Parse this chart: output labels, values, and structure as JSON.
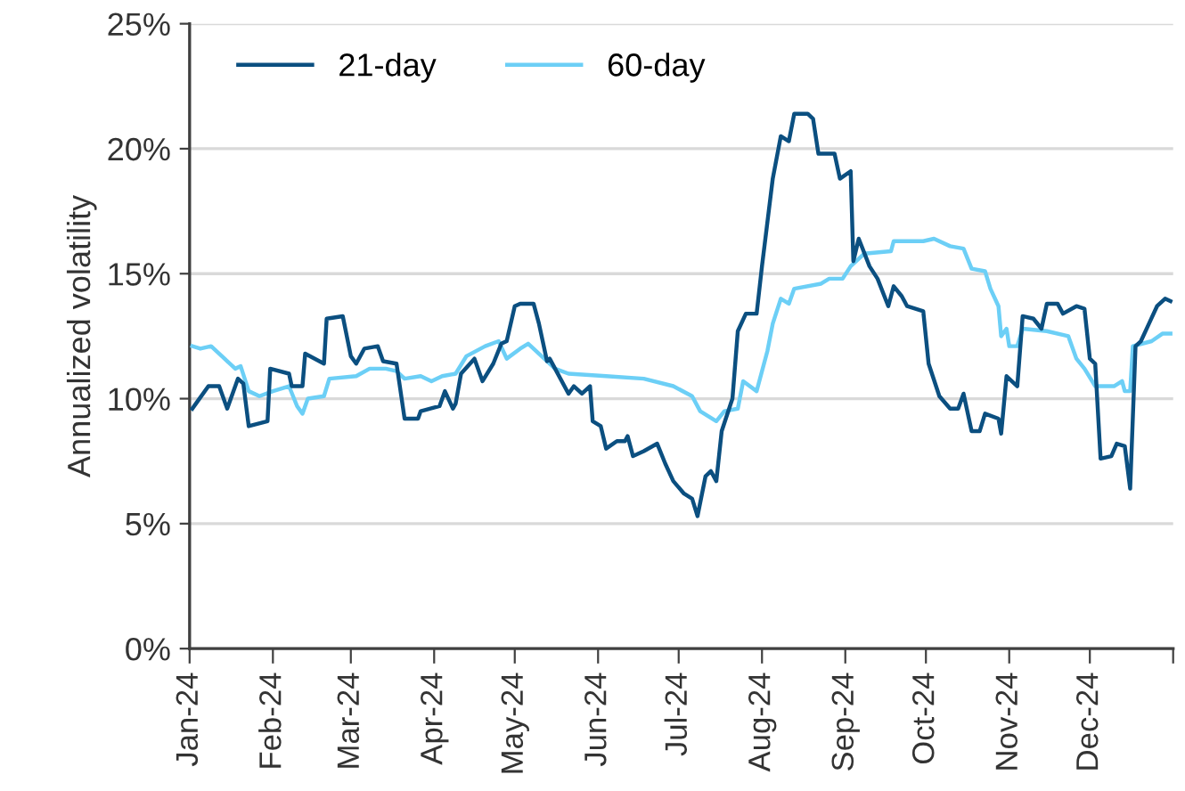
{
  "chart_data": {
    "type": "line",
    "ylabel": "Annualized volatility",
    "ylim": [
      0,
      25
    ],
    "yticks": [
      {
        "value": 0,
        "label": "0%"
      },
      {
        "value": 5,
        "label": "5%"
      },
      {
        "value": 10,
        "label": "10%"
      },
      {
        "value": 15,
        "label": "15%"
      },
      {
        "value": 20,
        "label": "20%"
      },
      {
        "value": 25,
        "label": "25%"
      }
    ],
    "xlim": [
      "2024-01-01",
      "2025-01-01"
    ],
    "xticks": [
      {
        "value": "2024-01-01",
        "label": "Jan-24"
      },
      {
        "value": "2024-02-01",
        "label": "Feb-24"
      },
      {
        "value": "2024-03-01",
        "label": "Mar-24"
      },
      {
        "value": "2024-04-01",
        "label": "Apr-24"
      },
      {
        "value": "2024-05-01",
        "label": "May-24"
      },
      {
        "value": "2024-06-01",
        "label": "Jun-24"
      },
      {
        "value": "2024-07-01",
        "label": "Jul-24"
      },
      {
        "value": "2024-08-01",
        "label": "Aug-24"
      },
      {
        "value": "2024-09-01",
        "label": "Sep-24"
      },
      {
        "value": "2024-10-01",
        "label": "Oct-24"
      },
      {
        "value": "2024-11-01",
        "label": "Nov-24"
      },
      {
        "value": "2024-12-01",
        "label": "Dec-24"
      },
      {
        "value": "2025-01-01",
        "label": null
      }
    ],
    "grid": "y",
    "legend": "top left",
    "marker": "none",
    "line_style": "solid",
    "series": [
      {
        "name": "21-day",
        "color": "#0b4f80",
        "x": [
          "2024-01-02",
          "2024-01-04",
          "2024-01-08",
          "2024-01-12",
          "2024-01-15",
          "2024-01-19",
          "2024-01-21",
          "2024-01-23",
          "2024-01-30",
          "2024-01-31",
          "2024-02-07",
          "2024-02-08",
          "2024-02-12",
          "2024-02-13",
          "2024-02-20",
          "2024-02-21",
          "2024-02-27",
          "2024-03-01",
          "2024-03-03",
          "2024-03-06",
          "2024-03-11",
          "2024-03-13",
          "2024-03-18",
          "2024-03-21",
          "2024-03-26",
          "2024-03-27",
          "2024-04-03",
          "2024-04-05",
          "2024-04-08",
          "2024-04-09",
          "2024-04-11",
          "2024-04-16",
          "2024-04-19",
          "2024-04-23",
          "2024-04-26",
          "2024-04-28",
          "2024-05-01",
          "2024-05-03",
          "2024-05-08",
          "2024-05-10",
          "2024-05-13",
          "2024-05-14",
          "2024-05-16",
          "2024-05-21",
          "2024-05-23",
          "2024-05-26",
          "2024-05-29",
          "2024-05-30",
          "2024-06-02",
          "2024-06-04",
          "2024-06-08",
          "2024-06-11",
          "2024-06-12",
          "2024-06-14",
          "2024-06-18",
          "2024-06-23",
          "2024-06-26",
          "2024-06-29",
          "2024-07-03",
          "2024-07-06",
          "2024-07-08",
          "2024-07-11",
          "2024-07-13",
          "2024-07-15",
          "2024-07-17",
          "2024-07-21",
          "2024-07-23",
          "2024-07-26",
          "2024-07-30",
          "2024-08-01",
          "2024-08-05",
          "2024-08-08",
          "2024-08-11",
          "2024-08-13",
          "2024-08-18",
          "2024-08-20",
          "2024-08-22",
          "2024-08-28",
          "2024-08-30",
          "2024-09-03",
          "2024-09-04",
          "2024-09-06",
          "2024-09-10",
          "2024-09-13",
          "2024-09-17",
          "2024-09-19",
          "2024-09-22",
          "2024-09-24",
          "2024-09-30",
          "2024-10-02",
          "2024-10-06",
          "2024-10-10",
          "2024-10-13",
          "2024-10-15",
          "2024-10-18",
          "2024-10-21",
          "2024-10-23",
          "2024-10-28",
          "2024-10-29",
          "2024-10-31",
          "2024-11-04",
          "2024-11-06",
          "2024-11-10",
          "2024-11-13",
          "2024-11-15",
          "2024-11-19",
          "2024-11-21",
          "2024-11-26",
          "2024-11-29",
          "2024-12-01",
          "2024-12-03",
          "2024-12-05",
          "2024-12-09",
          "2024-12-11",
          "2024-12-14",
          "2024-12-16",
          "2024-12-18",
          "2024-12-20",
          "2024-12-23",
          "2024-12-26",
          "2024-12-29",
          "2024-12-31"
        ],
        "values": [
          9.6,
          9.9,
          10.5,
          10.5,
          9.6,
          10.8,
          10.6,
          8.9,
          9.1,
          11.2,
          11.0,
          10.5,
          10.5,
          11.8,
          11.4,
          13.2,
          13.3,
          11.7,
          11.4,
          12.0,
          12.1,
          11.5,
          11.4,
          9.2,
          9.2,
          9.5,
          9.7,
          10.3,
          9.6,
          9.8,
          11.0,
          11.6,
          10.7,
          11.4,
          12.2,
          12.3,
          13.7,
          13.8,
          13.8,
          13.0,
          11.5,
          11.6,
          11.2,
          10.2,
          10.5,
          10.2,
          10.5,
          9.1,
          8.9,
          8.0,
          8.3,
          8.3,
          8.5,
          7.7,
          7.9,
          8.2,
          7.4,
          6.7,
          6.2,
          6.0,
          5.3,
          6.9,
          7.1,
          6.7,
          8.7,
          10.0,
          12.7,
          13.4,
          13.4,
          15.3,
          18.8,
          20.5,
          20.3,
          21.4,
          21.4,
          21.2,
          19.8,
          19.8,
          18.8,
          19.1,
          15.5,
          16.4,
          15.3,
          14.8,
          13.7,
          14.5,
          14.1,
          13.7,
          13.5,
          11.4,
          10.1,
          9.6,
          9.6,
          10.2,
          8.7,
          8.7,
          9.4,
          9.2,
          8.6,
          10.9,
          10.5,
          13.3,
          13.2,
          12.8,
          13.8,
          13.8,
          13.4,
          13.7,
          13.6,
          11.6,
          11.4,
          7.6,
          7.7,
          8.2,
          8.1,
          6.4,
          12.1,
          12.3,
          13.0,
          13.7,
          14.0,
          13.9
        ]
      },
      {
        "name": "60-day",
        "color": "#6ccff6",
        "x": [
          "2024-01-02",
          "2024-01-05",
          "2024-01-09",
          "2024-01-14",
          "2024-01-18",
          "2024-01-20",
          "2024-01-23",
          "2024-01-27",
          "2024-02-01",
          "2024-02-07",
          "2024-02-10",
          "2024-02-12",
          "2024-02-14",
          "2024-02-20",
          "2024-02-22",
          "2024-03-03",
          "2024-03-08",
          "2024-03-14",
          "2024-03-18",
          "2024-03-21",
          "2024-03-27",
          "2024-03-31",
          "2024-04-04",
          "2024-04-09",
          "2024-04-13",
          "2024-04-20",
          "2024-04-25",
          "2024-04-28",
          "2024-05-03",
          "2024-05-06",
          "2024-05-11",
          "2024-05-16",
          "2024-05-21",
          "2024-06-04",
          "2024-06-18",
          "2024-06-29",
          "2024-07-06",
          "2024-07-09",
          "2024-07-15",
          "2024-07-18",
          "2024-07-23",
          "2024-07-25",
          "2024-07-30",
          "2024-08-03",
          "2024-08-05",
          "2024-08-08",
          "2024-08-11",
          "2024-08-13",
          "2024-08-23",
          "2024-08-26",
          "2024-08-31",
          "2024-09-03",
          "2024-09-08",
          "2024-09-18",
          "2024-09-19",
          "2024-09-30",
          "2024-10-04",
          "2024-10-10",
          "2024-10-15",
          "2024-10-18",
          "2024-10-23",
          "2024-10-25",
          "2024-10-28",
          "2024-10-29",
          "2024-10-31",
          "2024-11-01",
          "2024-11-04",
          "2024-11-06",
          "2024-11-15",
          "2024-11-23",
          "2024-11-26",
          "2024-11-29",
          "2024-12-03",
          "2024-12-10",
          "2024-12-13",
          "2024-12-14",
          "2024-12-16",
          "2024-12-17",
          "2024-12-24",
          "2024-12-28",
          "2024-12-31"
        ],
        "values": [
          12.1,
          12.0,
          12.1,
          11.6,
          11.2,
          11.3,
          10.3,
          10.1,
          10.3,
          10.5,
          9.7,
          9.4,
          10.0,
          10.1,
          10.8,
          10.9,
          11.2,
          11.2,
          11.1,
          10.8,
          10.9,
          10.7,
          10.9,
          11.0,
          11.7,
          12.1,
          12.3,
          11.6,
          12.0,
          12.2,
          11.7,
          11.2,
          11.0,
          10.9,
          10.8,
          10.5,
          10.1,
          9.5,
          9.1,
          9.5,
          9.6,
          10.7,
          10.3,
          11.9,
          13.0,
          14.0,
          13.8,
          14.4,
          14.6,
          14.8,
          14.8,
          15.3,
          15.8,
          15.9,
          16.3,
          16.3,
          16.4,
          16.1,
          16.0,
          15.2,
          15.1,
          14.4,
          13.7,
          12.5,
          12.8,
          12.1,
          12.1,
          12.8,
          12.7,
          12.5,
          11.6,
          11.2,
          10.5,
          10.5,
          10.7,
          10.3,
          10.3,
          12.1,
          12.3,
          12.6,
          12.6
        ]
      }
    ]
  }
}
